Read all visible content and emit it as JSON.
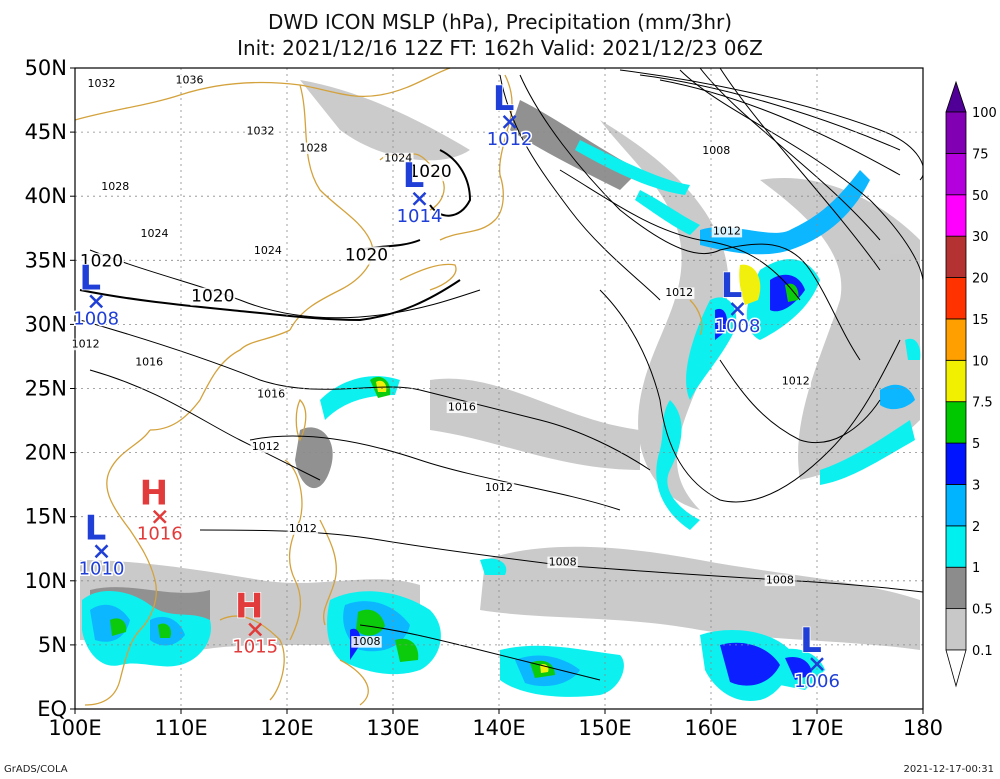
{
  "title": {
    "line1": "DWD ICON MSLP (hPa), Precipitation (mm/3hr)",
    "line2": "Init: 2021/12/16 12Z  FT: 162h  Valid: 2021/12/23 06Z"
  },
  "axes": {
    "lon_ticks": [
      "100E",
      "110E",
      "120E",
      "130E",
      "140E",
      "150E",
      "160E",
      "170E",
      "180"
    ],
    "lat_ticks": [
      "EQ",
      "5N",
      "10N",
      "15N",
      "20N",
      "25N",
      "30N",
      "35N",
      "40N",
      "45N",
      "50N"
    ],
    "lon_range": [
      100,
      180
    ],
    "lat_range": [
      0,
      50
    ],
    "grid": true
  },
  "colors": {
    "coast": "#d4a23c",
    "low": "#1f3fd6",
    "high": "#e23b3b",
    "isobar": "#000000"
  },
  "pressure_centers": [
    {
      "type": "L",
      "letter": "L",
      "value": "1012",
      "lon": 141.0,
      "lat": 45.8
    },
    {
      "type": "L",
      "letter": "L",
      "value": "1014",
      "lon": 132.5,
      "lat": 39.8
    },
    {
      "type": "L",
      "letter": "L",
      "value": "1008",
      "lon": 102.0,
      "lat": 31.8
    },
    {
      "type": "L",
      "letter": "L",
      "value": "1008",
      "lon": 162.5,
      "lat": 31.2
    },
    {
      "type": "H",
      "letter": "H",
      "value": "1016",
      "lon": 108.0,
      "lat": 15.0
    },
    {
      "type": "L",
      "letter": "L",
      "value": "1010",
      "lon": 102.5,
      "lat": 12.3
    },
    {
      "type": "H",
      "letter": "H",
      "value": "1015",
      "lon": 117.0,
      "lat": 6.2
    },
    {
      "type": "L",
      "letter": "L",
      "value": "1006",
      "lon": 170.0,
      "lat": 3.5
    }
  ],
  "isobar_labels": [
    {
      "text": "1032",
      "lon": 102.5,
      "lat": 48.5,
      "bold": false
    },
    {
      "text": "1036",
      "lon": 110.8,
      "lat": 48.8,
      "bold": false
    },
    {
      "text": "1032",
      "lon": 117.5,
      "lat": 44.8,
      "bold": false
    },
    {
      "text": "1028",
      "lon": 122.5,
      "lat": 43.5,
      "bold": false
    },
    {
      "text": "1024",
      "lon": 130.5,
      "lat": 42.7,
      "bold": false
    },
    {
      "text": "1028",
      "lon": 103.8,
      "lat": 40.5,
      "bold": false
    },
    {
      "text": "1024",
      "lon": 107.5,
      "lat": 36.8,
      "bold": false
    },
    {
      "text": "1024",
      "lon": 118.2,
      "lat": 35.5,
      "bold": false
    },
    {
      "text": "1020",
      "lon": 133.5,
      "lat": 41.5,
      "bold": true
    },
    {
      "text": "1020",
      "lon": 127.5,
      "lat": 35.0,
      "bold": true
    },
    {
      "text": "1020",
      "lon": 102.5,
      "lat": 34.5,
      "bold": true
    },
    {
      "text": "1020",
      "lon": 113.0,
      "lat": 31.8,
      "bold": true
    },
    {
      "text": "1012",
      "lon": 101.0,
      "lat": 28.2,
      "bold": false
    },
    {
      "text": "1016",
      "lon": 107.0,
      "lat": 26.8,
      "bold": false
    },
    {
      "text": "1016",
      "lon": 118.5,
      "lat": 24.3,
      "bold": false
    },
    {
      "text": "1012",
      "lon": 118.0,
      "lat": 20.2,
      "bold": false
    },
    {
      "text": "1016",
      "lon": 136.5,
      "lat": 23.3,
      "bold": false
    },
    {
      "text": "1012",
      "lon": 140.0,
      "lat": 17.0,
      "bold": false
    },
    {
      "text": "1012",
      "lon": 121.5,
      "lat": 13.8,
      "bold": false
    },
    {
      "text": "1008",
      "lon": 146.0,
      "lat": 11.2,
      "bold": false
    },
    {
      "text": "1008",
      "lon": 166.5,
      "lat": 9.8,
      "bold": false
    },
    {
      "text": "1008",
      "lon": 127.5,
      "lat": 5.0,
      "bold": false
    },
    {
      "text": "1008",
      "lon": 160.5,
      "lat": 43.3,
      "bold": false
    },
    {
      "text": "1012",
      "lon": 161.5,
      "lat": 37.0,
      "bold": false
    },
    {
      "text": "1012",
      "lon": 157.0,
      "lat": 32.2,
      "bold": false
    },
    {
      "text": "1012",
      "lon": 168.0,
      "lat": 25.3,
      "bold": false
    }
  ],
  "colorbar": {
    "labels": [
      "0.1",
      "0.5",
      "1",
      "2",
      "3",
      "5",
      "7.5",
      "10",
      "15",
      "20",
      "30",
      "50",
      "75",
      "100"
    ],
    "colors": [
      "#ffffff",
      "#c8c8c8",
      "#8c8c8c",
      "#00f0f0",
      "#00b4ff",
      "#0014ff",
      "#00c800",
      "#f0f000",
      "#ffa000",
      "#ff3200",
      "#b43232",
      "#ff00ff",
      "#b400dc",
      "#8200b4",
      "#500096"
    ]
  },
  "footer": {
    "left": "GrADS/COLA",
    "right": "2021-12-17-00:31"
  }
}
